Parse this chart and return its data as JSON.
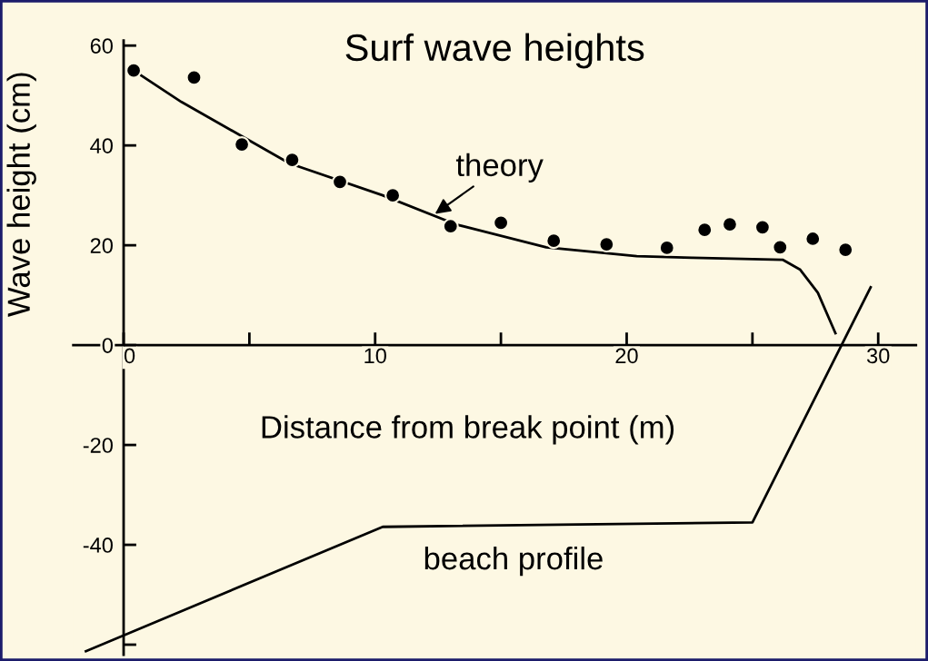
{
  "chart_data": {
    "type": "scatter",
    "title": "Surf wave heights",
    "xlabel": "Distance from break point (m)",
    "ylabel": "Wave height (cm)",
    "xlim": [
      -2,
      31.5
    ],
    "ylim": [
      -62,
      61
    ],
    "xticks": [
      0,
      {
        "value": 5,
        "label": null
      },
      10,
      {
        "value": 15,
        "label": null
      },
      20,
      {
        "value": 25,
        "label": null
      },
      30
    ],
    "yticks": [
      {
        "value": -60,
        "label": null
      },
      -40,
      -20,
      0,
      20,
      40,
      60
    ],
    "grid": false,
    "series": [
      {
        "marker": "circle",
        "color": "#000000",
        "x": [
          0.4,
          2.8,
          4.7,
          6.7,
          8.6,
          10.7,
          13.0,
          15.0,
          17.1,
          19.2,
          21.6,
          23.1,
          24.1,
          25.4,
          26.1,
          27.4,
          28.7
        ],
        "values": [
          55,
          53.6,
          40.2,
          37.1,
          32.7,
          30,
          23.8,
          24.5,
          20.9,
          20.2,
          19.5,
          23.1,
          24.2,
          23.6,
          19.6,
          21.3,
          19.1
        ]
      },
      {
        "type": "line",
        "color": "#000000",
        "line_style": "solid",
        "x": [
          0.7,
          2.3,
          6.6,
          10.3,
          13.2,
          16.8,
          20.4,
          22.6,
          26.2,
          26.9,
          27.6,
          28.3
        ],
        "values": [
          54,
          48.7,
          36.4,
          30,
          24.2,
          19.6,
          17.8,
          17.5,
          17.1,
          15.1,
          10.5,
          2.4
        ]
      },
      {
        "type": "line",
        "color": "#000000",
        "line_style": "solid",
        "x": [
          -1.5,
          10.3,
          25.0,
          29.7
        ],
        "values": [
          -61.3,
          -36.4,
          -35.5,
          11.6
        ]
      }
    ],
    "annotations": [
      {
        "text": "theory",
        "x": 12.3,
        "y": 26
      },
      {
        "text": "beach profile",
        "x": 15.5,
        "y": -35.8
      }
    ]
  }
}
